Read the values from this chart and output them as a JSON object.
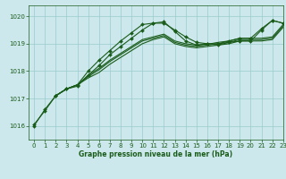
{
  "title": "Graphe pression niveau de la mer (hPa)",
  "bg_color": "#cce8ec",
  "grid_color": "#99cccc",
  "line_color": "#1a5c1a",
  "xlim": [
    -0.5,
    23
  ],
  "ylim": [
    1015.5,
    1020.4
  ],
  "yticks": [
    1016,
    1017,
    1018,
    1019,
    1020
  ],
  "xticks": [
    0,
    1,
    2,
    3,
    4,
    5,
    6,
    7,
    8,
    9,
    10,
    11,
    12,
    13,
    14,
    15,
    16,
    17,
    18,
    19,
    20,
    21,
    22,
    23
  ],
  "series": [
    {
      "x": [
        0,
        1,
        2,
        3,
        4,
        5,
        6,
        7,
        8,
        9,
        10,
        11,
        12,
        13,
        14,
        15,
        16,
        17,
        18,
        19,
        20,
        21,
        22,
        23
      ],
      "y": [
        1016.0,
        1016.6,
        1017.1,
        1017.35,
        1017.45,
        1017.85,
        1018.2,
        1018.6,
        1018.9,
        1019.2,
        1019.5,
        1019.75,
        1019.75,
        1019.5,
        1019.25,
        1019.05,
        1019.0,
        1018.95,
        1019.05,
        1019.1,
        1019.1,
        1019.5,
        1019.85,
        1019.75
      ],
      "marker": true
    },
    {
      "x": [
        0,
        1,
        2,
        3,
        4,
        5,
        6,
        7,
        8,
        9,
        10,
        11,
        12,
        13,
        14,
        15,
        16,
        17,
        18,
        19,
        20,
        21,
        22,
        23
      ],
      "y": [
        1016.05,
        1016.55,
        1017.1,
        1017.35,
        1017.5,
        1018.0,
        1018.4,
        1018.75,
        1019.1,
        1019.4,
        1019.7,
        1019.75,
        1019.8,
        1019.45,
        1019.1,
        1018.95,
        1019.0,
        1019.0,
        1019.1,
        1019.2,
        1019.2,
        1019.55,
        1019.85,
        1019.75
      ],
      "marker": true
    },
    {
      "x": [
        2,
        3,
        4,
        5,
        6,
        7,
        8,
        9,
        10,
        11,
        12,
        13,
        14,
        15,
        16,
        17,
        18,
        19,
        20,
        21,
        22,
        23
      ],
      "y": [
        1017.1,
        1017.35,
        1017.5,
        1017.75,
        1017.95,
        1018.25,
        1018.5,
        1018.75,
        1019.0,
        1019.15,
        1019.25,
        1019.0,
        1018.9,
        1018.85,
        1018.9,
        1018.95,
        1019.0,
        1019.1,
        1019.1,
        1019.1,
        1019.15,
        1019.6
      ],
      "marker": false
    },
    {
      "x": [
        2,
        3,
        4,
        5,
        6,
        7,
        8,
        9,
        10,
        11,
        12,
        13,
        14,
        15,
        16,
        17,
        18,
        19,
        20,
        21,
        22,
        23
      ],
      "y": [
        1017.1,
        1017.35,
        1017.5,
        1017.8,
        1018.05,
        1018.35,
        1018.6,
        1018.85,
        1019.1,
        1019.2,
        1019.3,
        1019.05,
        1018.95,
        1018.9,
        1018.95,
        1019.0,
        1019.05,
        1019.15,
        1019.15,
        1019.15,
        1019.2,
        1019.65
      ],
      "marker": false
    },
    {
      "x": [
        2,
        3,
        4,
        5,
        6,
        7,
        8,
        9,
        10,
        11,
        12,
        13,
        14,
        15,
        16,
        17,
        18,
        19,
        20,
        21,
        22,
        23
      ],
      "y": [
        1017.1,
        1017.35,
        1017.5,
        1017.85,
        1018.1,
        1018.4,
        1018.65,
        1018.9,
        1019.15,
        1019.25,
        1019.35,
        1019.1,
        1019.0,
        1018.95,
        1018.98,
        1019.05,
        1019.1,
        1019.2,
        1019.2,
        1019.2,
        1019.25,
        1019.7
      ],
      "marker": false
    }
  ]
}
